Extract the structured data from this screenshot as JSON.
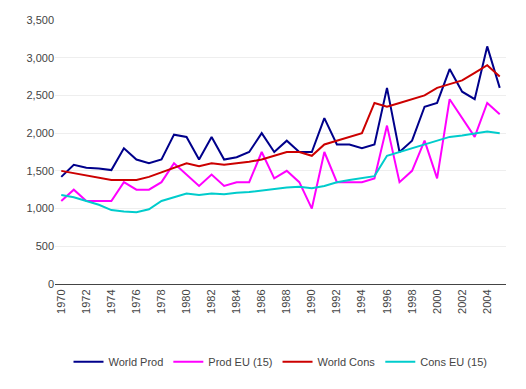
{
  "chart_data": {
    "type": "line",
    "x": [
      1970,
      1971,
      1972,
      1973,
      1974,
      1975,
      1976,
      1977,
      1978,
      1979,
      1980,
      1981,
      1982,
      1983,
      1984,
      1985,
      1986,
      1987,
      1988,
      1989,
      1990,
      1991,
      1992,
      1993,
      1994,
      1995,
      1996,
      1997,
      1998,
      1999,
      2000,
      2001,
      2002,
      2003,
      2004,
      2005
    ],
    "series": [
      {
        "name": "World Prod",
        "color": "#00008B",
        "values": [
          1420,
          1580,
          1540,
          1530,
          1510,
          1800,
          1650,
          1600,
          1650,
          1980,
          1950,
          1650,
          1950,
          1650,
          1680,
          1750,
          2000,
          1750,
          1900,
          1750,
          1750,
          2200,
          1850,
          1850,
          1800,
          1850,
          2600,
          1750,
          1900,
          2350,
          2400,
          2850,
          2550,
          2450,
          3150,
          2600
        ]
      },
      {
        "name": "Prod EU (15)",
        "color": "#FF00FF",
        "values": [
          1100,
          1250,
          1100,
          1100,
          1100,
          1350,
          1250,
          1250,
          1350,
          1600,
          1450,
          1300,
          1450,
          1300,
          1350,
          1350,
          1750,
          1400,
          1500,
          1350,
          1000,
          1750,
          1350,
          1350,
          1350,
          1400,
          2100,
          1350,
          1500,
          1900,
          1400,
          2450,
          2200,
          1950,
          2400,
          2250
        ]
      },
      {
        "name": "World Cons",
        "color": "#CC0000",
        "values": [
          1500,
          1470,
          1440,
          1420,
          1380,
          1380,
          1380,
          1420,
          1480,
          1550,
          1600,
          1560,
          1600,
          1580,
          1600,
          1620,
          1650,
          1700,
          1750,
          1750,
          1700,
          1850,
          1900,
          1950,
          2000,
          2400,
          2350,
          2400,
          2450,
          2500,
          2600,
          2650,
          2700,
          2800,
          2900,
          2750
        ]
      },
      {
        "name": "Cons EU (15)",
        "color": "#00CCCC",
        "values": [
          1180,
          1150,
          1100,
          1050,
          980,
          960,
          950,
          990,
          1100,
          1150,
          1200,
          1180,
          1200,
          1190,
          1210,
          1220,
          1240,
          1260,
          1280,
          1290,
          1270,
          1300,
          1350,
          1380,
          1400,
          1430,
          1700,
          1750,
          1800,
          1850,
          1900,
          1950,
          1970,
          2000,
          2020,
          2000
        ]
      }
    ],
    "xlim": [
      1969.5,
      2005.5
    ],
    "xticks": [
      1970,
      1972,
      1974,
      1976,
      1978,
      1980,
      1982,
      1984,
      1986,
      1988,
      1990,
      1992,
      1994,
      1996,
      1998,
      2000,
      2002,
      2004
    ],
    "ylim": [
      0,
      3500
    ],
    "yticks": [
      0,
      500,
      {
        "value": 1000,
        "label": "1,000"
      },
      {
        "value": 1500,
        "label": "1,500"
      },
      {
        "value": 2000,
        "label": "2,000"
      },
      {
        "value": 2500,
        "label": "2,500"
      },
      {
        "value": 3000,
        "label": "3,000"
      },
      {
        "value": 3500,
        "label": "3,500"
      }
    ],
    "grid": true,
    "legend": "bottom"
  }
}
